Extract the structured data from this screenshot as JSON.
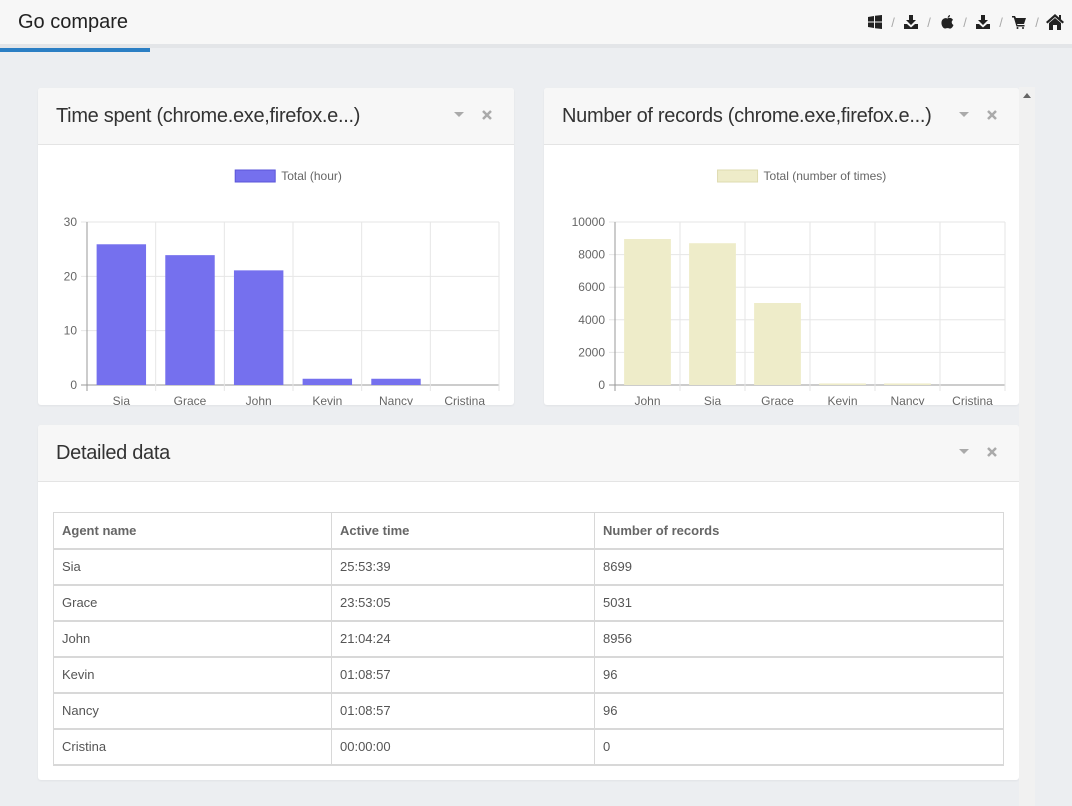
{
  "app": {
    "title": "Go compare"
  },
  "topbar": {
    "accent": "#2b7fc4",
    "icons": [
      "windows-icon",
      "download-icon",
      "apple-icon",
      "download-icon",
      "cart-icon",
      "home-icon"
    ],
    "separator": "/"
  },
  "panels": {
    "time": {
      "title": "Time spent (chrome.exe,firefox.e...)"
    },
    "records": {
      "title": "Number of records (chrome.exe,firefox.e...)"
    },
    "detail": {
      "title": "Detailed data"
    }
  },
  "chart_data": [
    {
      "type": "bar",
      "categories": [
        "Sia",
        "Grace",
        "John",
        "Kevin",
        "Nancy",
        "Cristina"
      ],
      "series": [
        {
          "name": "Total (hour)",
          "values": [
            25.9,
            23.9,
            21.1,
            1.15,
            1.15,
            0
          ],
          "color": "#7570ee"
        }
      ],
      "ylim": [
        0,
        30
      ],
      "yticks": [
        0,
        10,
        20,
        30
      ],
      "grid": true,
      "legend": "top"
    },
    {
      "type": "bar",
      "categories": [
        "John",
        "Sia",
        "Grace",
        "Kevin",
        "Nancy",
        "Cristina"
      ],
      "series": [
        {
          "name": "Total (number of times)",
          "values": [
            8956,
            8699,
            5031,
            96,
            96,
            0
          ],
          "color": "#eeecc9"
        }
      ],
      "ylim": [
        0,
        10000
      ],
      "yticks": [
        0,
        2000,
        4000,
        6000,
        8000,
        10000
      ],
      "grid": true,
      "legend": "top"
    }
  ],
  "table": {
    "headers": [
      "Agent name",
      "Active time",
      "Number of records"
    ],
    "rows": [
      [
        "Sia",
        "25:53:39",
        "8699"
      ],
      [
        "Grace",
        "23:53:05",
        "5031"
      ],
      [
        "John",
        "21:04:24",
        "8956"
      ],
      [
        "Kevin",
        "01:08:57",
        "96"
      ],
      [
        "Nancy",
        "01:08:57",
        "96"
      ],
      [
        "Cristina",
        "00:00:00",
        "0"
      ]
    ]
  }
}
